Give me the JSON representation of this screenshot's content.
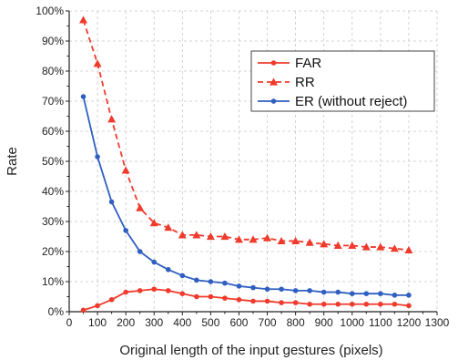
{
  "chart_data": {
    "type": "line",
    "xlabel": "Original length of the input gestures (pixels)",
    "ylabel": "Rate",
    "xlim": [
      0,
      1300
    ],
    "ylim": [
      0,
      100
    ],
    "x_ticks": [
      0,
      100,
      200,
      300,
      400,
      500,
      600,
      700,
      800,
      900,
      1000,
      1100,
      1200,
      1300
    ],
    "y_ticks": [
      0,
      10,
      20,
      30,
      40,
      50,
      60,
      70,
      80,
      90,
      100
    ],
    "y_tick_suffix": "%",
    "grid": true,
    "legend_position": "top-right",
    "x": [
      50,
      100,
      150,
      200,
      250,
      300,
      350,
      400,
      450,
      500,
      550,
      600,
      650,
      700,
      750,
      800,
      850,
      900,
      950,
      1000,
      1050,
      1100,
      1150,
      1200
    ],
    "series": [
      {
        "name": "FAR",
        "color": "#f03a2c",
        "line_style": "solid",
        "marker": "circle",
        "values": [
          0.5,
          2.0,
          4.0,
          6.5,
          7.0,
          7.5,
          7.0,
          6.0,
          5.0,
          5.0,
          4.5,
          4.0,
          3.5,
          3.5,
          3.0,
          3.0,
          2.5,
          2.5,
          2.5,
          2.5,
          2.5,
          2.5,
          2.5,
          2.0
        ]
      },
      {
        "name": "RR",
        "color": "#f03a2c",
        "line_style": "dashed",
        "marker": "triangle",
        "values": [
          97.0,
          82.5,
          64.0,
          47.0,
          34.5,
          29.5,
          28.0,
          25.5,
          25.5,
          25.0,
          25.0,
          24.0,
          24.0,
          24.5,
          23.5,
          23.5,
          23.0,
          22.5,
          22.0,
          22.0,
          21.5,
          21.5,
          21.0,
          20.5
        ]
      },
      {
        "name": "ER (without reject)",
        "color": "#2f5fc0",
        "line_style": "solid",
        "marker": "circle",
        "values": [
          71.5,
          51.5,
          36.5,
          27.0,
          20.0,
          16.5,
          14.0,
          12.0,
          10.5,
          10.0,
          9.5,
          8.5,
          8.0,
          7.5,
          7.5,
          7.0,
          7.0,
          6.5,
          6.5,
          6.0,
          6.0,
          6.0,
          5.5,
          5.5
        ]
      }
    ]
  }
}
